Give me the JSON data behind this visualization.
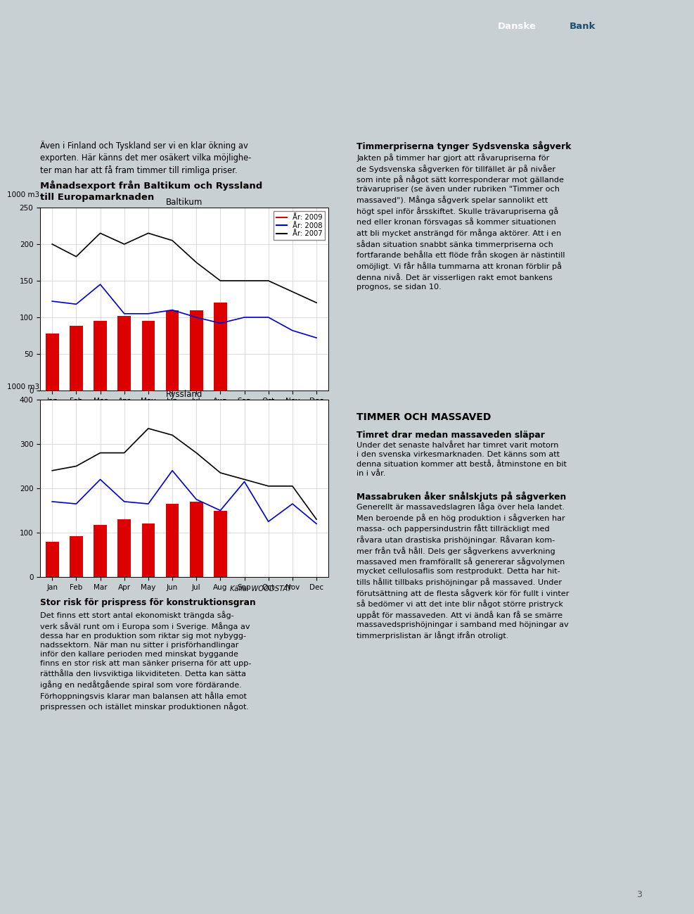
{
  "page_bg": "#c8d0d4",
  "header_bg": "#2e3d45",
  "content_bg": "#ffffff",
  "months": [
    "Jan",
    "Feb",
    "Mar",
    "Apr",
    "May",
    "Jun",
    "Jul",
    "Aug",
    "Sep",
    "Oct",
    "Nov",
    "Dec"
  ],
  "chart_title_line1": "Månadsexport från Baltikum och Ryssland",
  "chart_title_line2": "till Europamarknaden",
  "baltikum_title": "Baltikum",
  "ryssland_title": "Ryssland",
  "yunit": "1000 m3",
  "baltikum_bars": [
    78,
    88,
    95,
    102,
    95,
    110,
    110,
    120,
    0,
    0,
    0,
    0
  ],
  "baltikum_line2008": [
    122,
    118,
    145,
    105,
    105,
    110,
    100,
    92,
    100,
    100,
    82,
    72
  ],
  "baltikum_line2007": [
    200,
    183,
    215,
    200,
    215,
    205,
    175,
    150,
    150,
    150,
    135,
    120
  ],
  "baltikum_ylim": [
    0,
    250
  ],
  "baltikum_yticks": [
    0,
    50,
    100,
    150,
    200,
    250
  ],
  "ryssland_bars": [
    80,
    92,
    118,
    130,
    120,
    165,
    170,
    150,
    0,
    0,
    0,
    0
  ],
  "ryssland_line2008": [
    170,
    165,
    220,
    170,
    165,
    240,
    175,
    150,
    215,
    125,
    165,
    120
  ],
  "ryssland_line2007": [
    240,
    250,
    280,
    280,
    335,
    320,
    280,
    235,
    220,
    205,
    205,
    130
  ],
  "ryssland_ylim": [
    0,
    400
  ],
  "ryssland_yticks": [
    0,
    100,
    200,
    300,
    400
  ],
  "source_text": "Källa: WOODSTAT",
  "bottom_title": "Stor risk för prispress för konstruktionsgran",
  "bottom_text": "Det finns ett stort antal ekonomiskt trängda såg-\nverk såväl runt om i Europa som i Sverige. Många av\ndessa har en produktion som riktar sig mot nybygg-\nnadssektorn. När man nu sitter i prisförhandlingar\ninför den kallare perioden med minskat byggande\nfinns en stor risk att man sänker priserna för att upp-\nrätthålla den livsviktiga likviditeten. Detta kan sätta\nigång en nedåtgående spiral som vore fördärande.\nFörhoppningsvis klarar man balansen att hålla emot\nprispressen och istället minskar produktionen något.",
  "left_intro_text": "Även i Finland och Tyskland ser vi en klar ökning av\nexporten. Här känns det mer osäkert vilka möjlighe-\nter man har att få fram timmer till rimliga priser.",
  "right_title": "Timmerpriserna tynger Sydsvenska sågverk",
  "right_text1": "Jakten på timmer har gjort att råvarupriserna för\nde Sydsvenska sågverken för tillfället är på nivåer\nsom inte på något sätt korresponderar mot gällande\nträvarupriser (se även under rubriken \"Timmer och\nmassaved\"). Många sågverk spelar sannolikt ett\nhögt spel inför årsskiftet. Skulle trävarupriserna gå\nned eller kronan försvagas så kommer situationen\natt bli mycket ansträngd för många aktörer. Att i en\nsådan situation snabbt sänka timmerpriserna och\nfortfarande behålla ett flöde från skogen är nästintill\nomöjligt. Vi får hålla tummarna att kronan förblir på\ndenna nivå. Det är visserligen rakt emot bankens\nprognos, se sidan 10.",
  "timmer_title": "TIMMER OCH MASSAVED",
  "timmer_sub1": "Timret drar medan massaveden släpar",
  "timmer_text1": "Under det senaste halvåret har timret varit motorn\ni den svenska virkesmarknaden. Det känns som att\ndenna situation kommer att bestå, åtminstone en bit\nin i vår.",
  "massa_sub": "Massabruken åker snålskjuts på sågverken",
  "massa_text": "Generellt är massavedslagren låga över hela landet.\nMen beroende på en hög produktion i sågverken har\nmassa- och pappersindustrin fått tillräckligt med\nråvara utan drastiska prishöjningar. Råvaran kom-\nmer från två håll. Dels ger sågverkens avverkning\nmassaved men framförallt så genererar sågvolymen\nmycket cellulosaflis som restprodukt. Detta har hit-\ntills hållit tillbaks prishöjningar på massaved. Under\nförutsättning att de flesta sågverk kör för fullt i vinter\nså bedömer vi att det inte blir något större pristryck\nuppåt för massaveden. Att vi ändå kan få se smärre\nmassavedsprishöjningar i samband med höjningar av\ntimmerprislistan är långt ifrån otroligt.",
  "page_number": "3"
}
